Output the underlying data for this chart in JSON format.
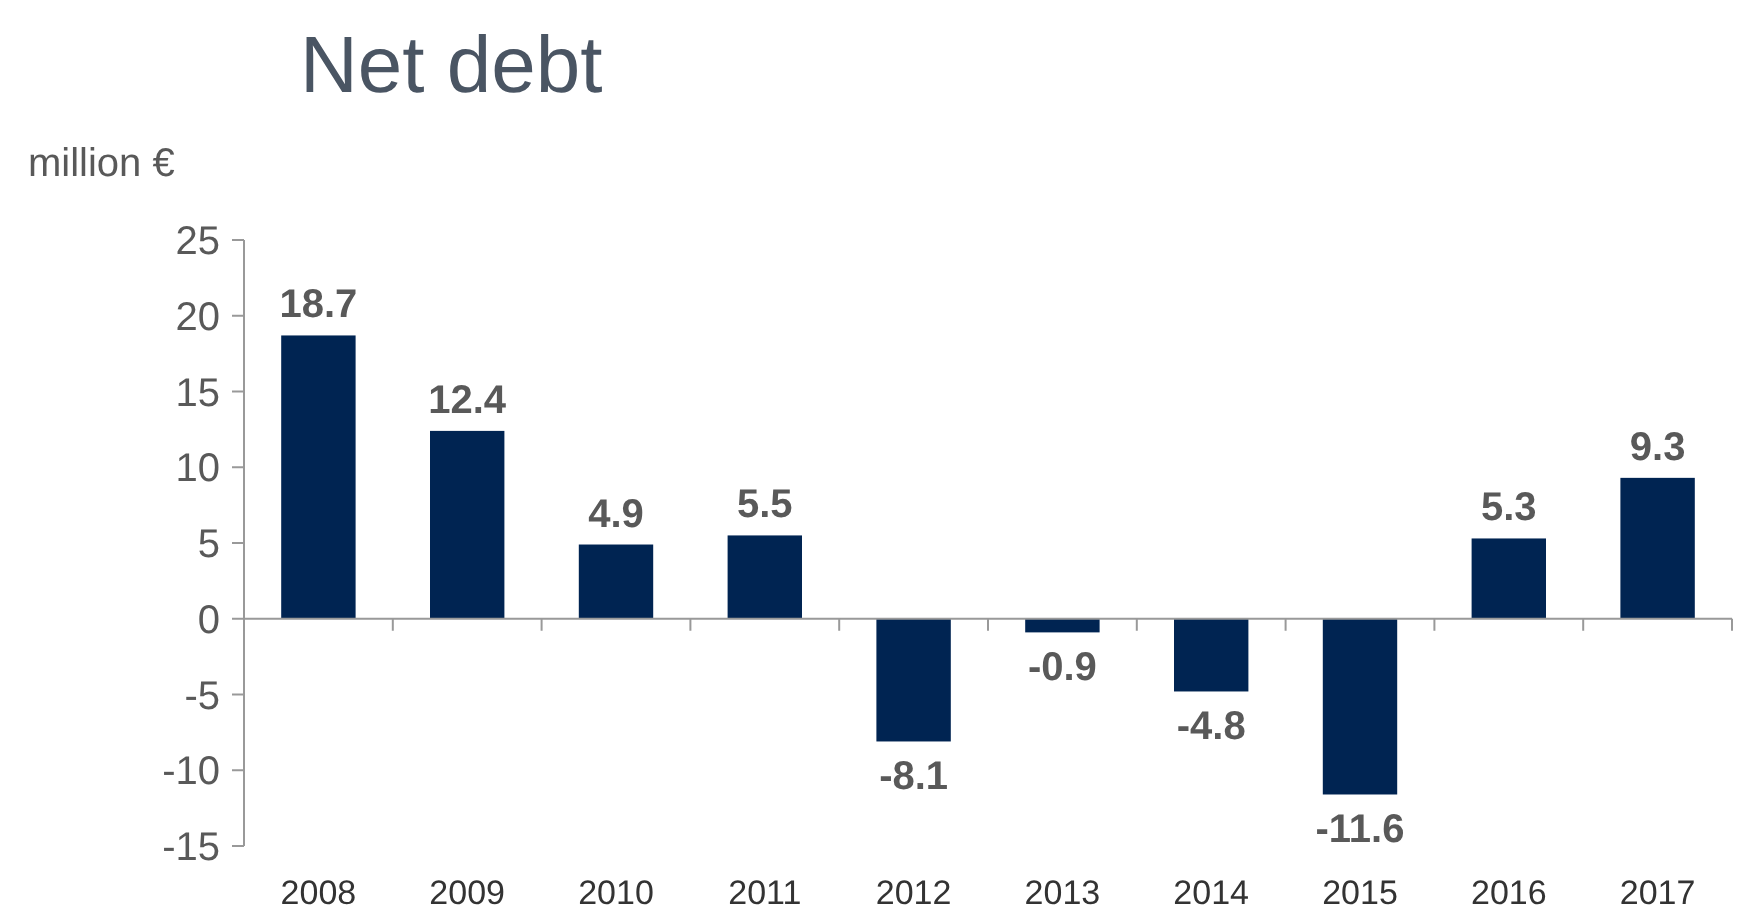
{
  "chart_data": {
    "type": "bar",
    "title": "Net debt",
    "ylabel": "million €",
    "categories": [
      "2008",
      "2009",
      "2010",
      "2011",
      "2012",
      "2013",
      "2014",
      "2015",
      "2016",
      "2017"
    ],
    "values": [
      18.7,
      12.4,
      4.9,
      5.5,
      -8.1,
      -0.9,
      -4.8,
      -11.6,
      5.3,
      9.3
    ],
    "color": "#002452",
    "ylim": [
      -15,
      25
    ],
    "yticks": [
      -15,
      -10,
      -5,
      0,
      5,
      10,
      15,
      20,
      25
    ],
    "data_labels": true
  }
}
